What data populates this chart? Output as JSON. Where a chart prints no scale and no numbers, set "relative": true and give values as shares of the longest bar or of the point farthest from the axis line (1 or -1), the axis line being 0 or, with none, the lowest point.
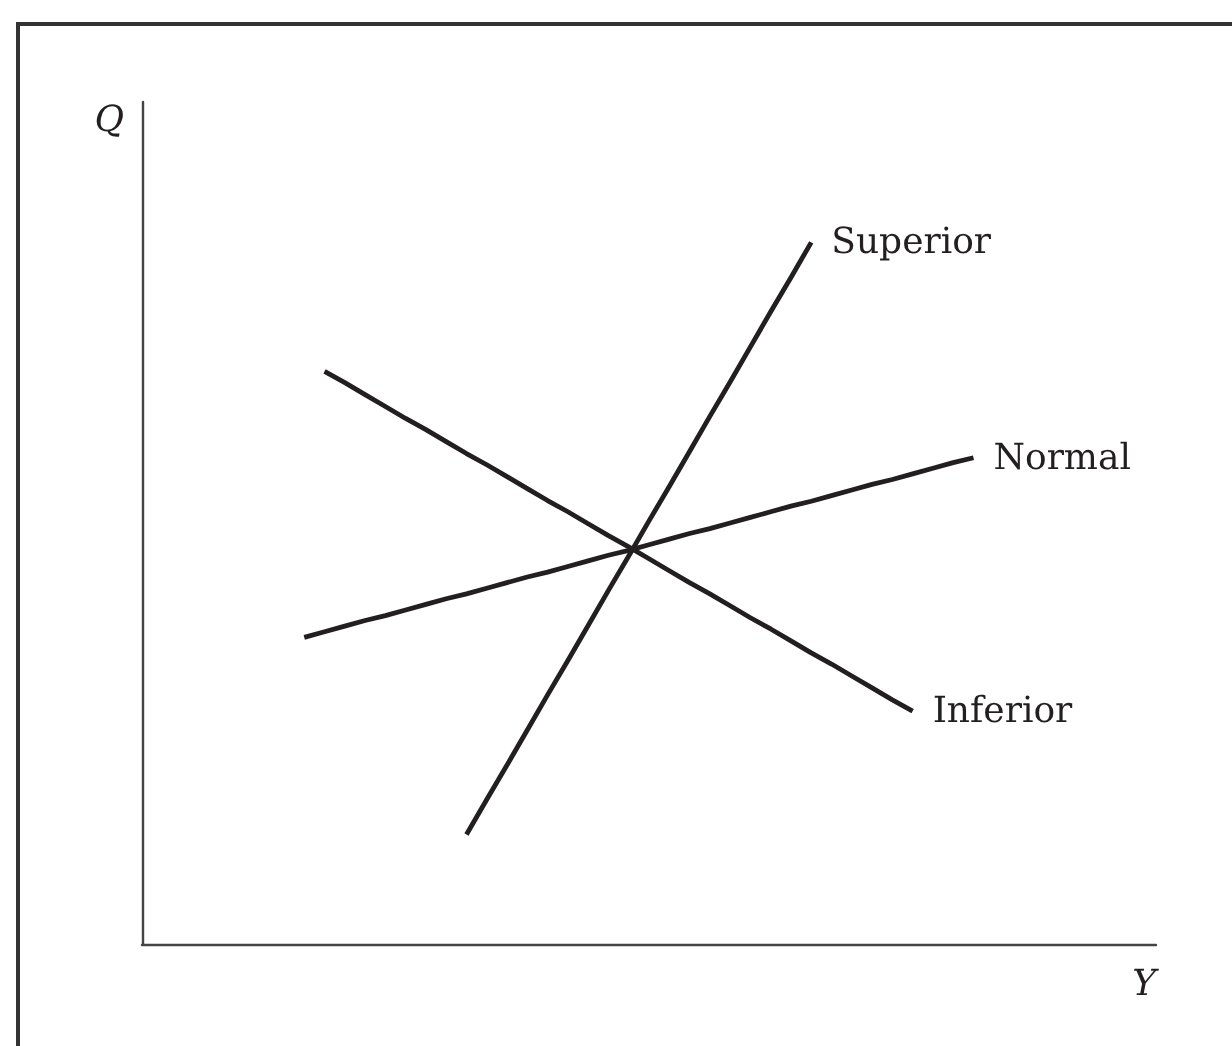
{
  "chart_data": {
    "type": "line",
    "relative": true,
    "xlabel": "Y",
    "ylabel": "Q",
    "marker": "none",
    "line_style": "solid",
    "categories": [
      null,
      null,
      null,
      null,
      null,
      null,
      null,
      null,
      null,
      null,
      null,
      null,
      null,
      null,
      null,
      null,
      null,
      null,
      null,
      null,
      null,
      null,
      null,
      null,
      null,
      null,
      null,
      null,
      null,
      null,
      null,
      null,
      null,
      null,
      null,
      null,
      null,
      null,
      null,
      null,
      null,
      null,
      null,
      null,
      null,
      null,
      null,
      null,
      null,
      null,
      null
    ],
    "series": [
      {
        "name": "Superior",
        "color": "#231f20",
        "values": [
          null,
          null,
          null,
          null,
          null,
          null,
          null,
          null,
          null,
          null,
          null,
          null,
          null,
          null,
          null,
          null,
          0.156,
          0.206,
          0.255,
          0.305,
          0.355,
          0.404,
          0.454,
          0.504,
          0.553,
          0.603,
          0.652,
          0.702,
          0.752,
          0.801,
          0.851,
          0.901,
          0.95,
          1,
          null,
          null,
          null,
          null,
          null,
          null,
          null,
          null,
          null,
          null,
          null,
          null,
          null,
          null,
          null,
          null,
          null
        ]
      },
      {
        "name": "Normal",
        "color": "#231f20",
        "values": [
          null,
          null,
          null,
          null,
          null,
          null,
          null,
          null,
          0.437,
          0.445,
          0.453,
          0.461,
          0.468,
          0.476,
          0.484,
          0.492,
          0.499,
          0.507,
          0.515,
          0.523,
          0.53,
          0.538,
          0.546,
          0.554,
          0.561,
          0.569,
          0.577,
          0.585,
          0.592,
          0.6,
          0.608,
          0.616,
          0.624,
          0.631,
          0.639,
          0.647,
          0.655,
          0.662,
          0.67,
          0.678,
          0.686,
          0.693,
          null,
          null,
          null,
          null,
          null,
          null,
          null,
          null,
          null
        ]
      },
      {
        "name": "Inferior",
        "color": "#231f20",
        "values": [
          null,
          null,
          null,
          null,
          null,
          null,
          null,
          null,
          null,
          0.816,
          0.8,
          0.783,
          0.766,
          0.749,
          0.733,
          0.716,
          0.699,
          0.683,
          0.666,
          0.649,
          0.632,
          0.616,
          0.599,
          0.582,
          0.566,
          0.549,
          0.532,
          0.515,
          0.499,
          0.482,
          0.465,
          0.449,
          0.432,
          0.415,
          0.399,
          0.382,
          0.365,
          0.348,
          0.332,
          null,
          null,
          null,
          null,
          null,
          null,
          null,
          null,
          null,
          null,
          null,
          null
        ]
      }
    ]
  }
}
